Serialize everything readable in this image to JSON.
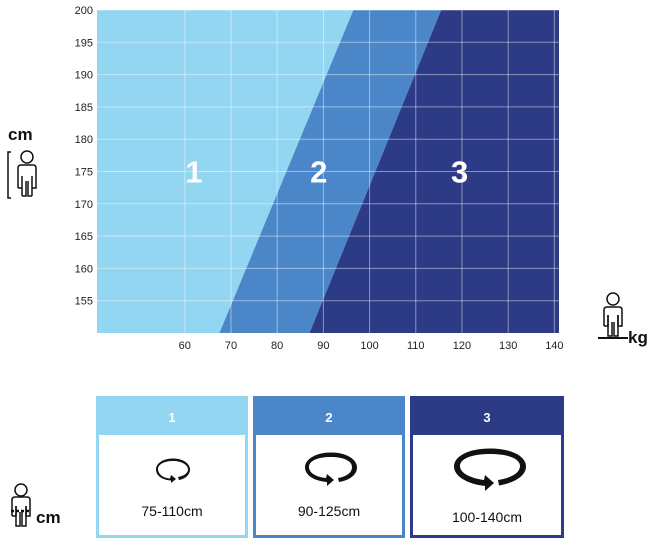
{
  "chart_data": {
    "type": "area",
    "xlim": [
      41,
      141
    ],
    "ylim": [
      150,
      200
    ],
    "x_ticks": [
      "60",
      "70",
      "80",
      "90",
      "100",
      "110",
      "120",
      "130",
      "140"
    ],
    "y_ticks": [
      "155",
      "160",
      "165",
      "170",
      "175",
      "180",
      "185",
      "190",
      "195",
      "200"
    ],
    "x_unit": "kg",
    "y_unit": "cm",
    "zones": [
      {
        "label": "1",
        "color": "#92d6f1",
        "boundary_right": [
          [
            67.5,
            150
          ],
          [
            96.5,
            200
          ]
        ]
      },
      {
        "label": "2",
        "color": "#4b87c8",
        "boundary_right": [
          [
            87.0,
            150
          ],
          [
            115.5,
            200
          ]
        ]
      },
      {
        "label": "3",
        "color": "#2d3b86"
      }
    ],
    "grid": true
  },
  "units": {
    "height": "cm",
    "weight": "kg",
    "waist": "cm"
  },
  "sizes": [
    {
      "number": "1",
      "range": "75-110cm",
      "color": "#92d6f1"
    },
    {
      "number": "2",
      "range": "90-125cm",
      "color": "#4b87c8"
    },
    {
      "number": "3",
      "range": "100-140cm",
      "color": "#2d3b86"
    }
  ]
}
